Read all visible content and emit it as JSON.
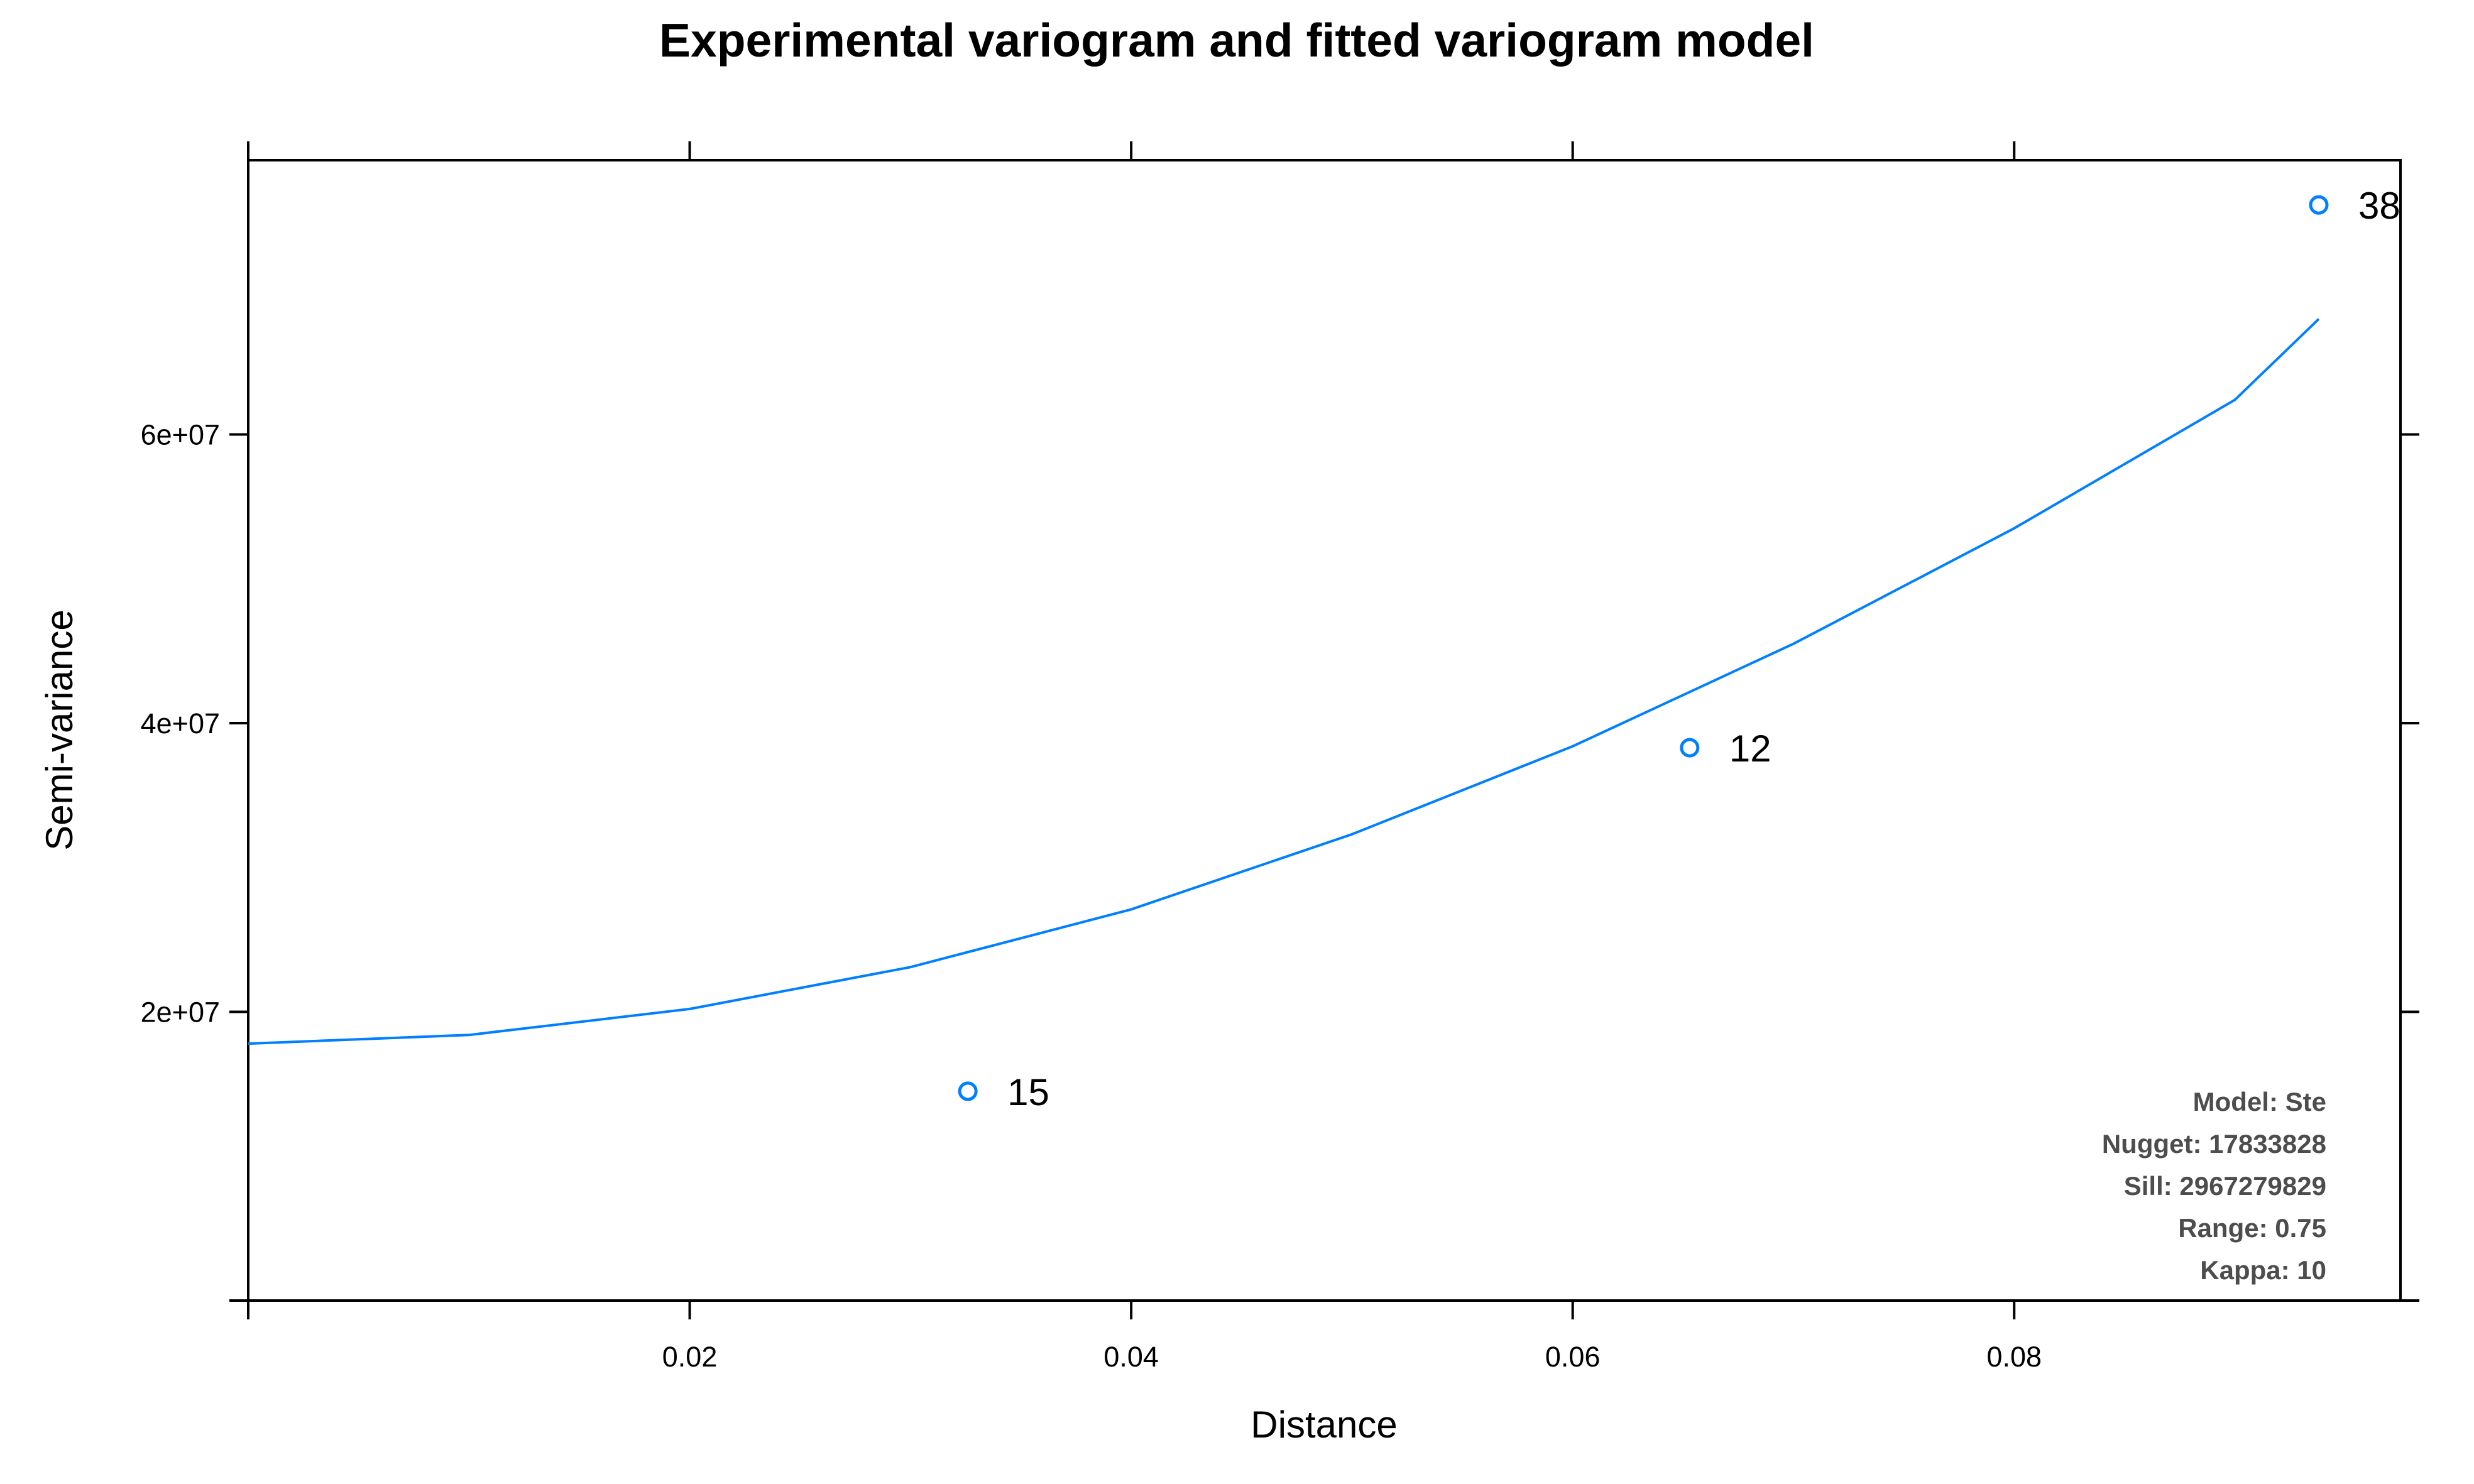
{
  "chart_data": {
    "type": "scatter",
    "title": "Experimental variogram and fitted variogram model",
    "xlabel": "Distance",
    "ylabel": "Semi-variance",
    "xlim": [
      0,
      0.0975
    ],
    "ylim": [
      0,
      79000000
    ],
    "x_ticks": [
      0.02,
      0.04,
      0.06,
      0.08
    ],
    "x_tick_labels": [
      "0.02",
      "0.04",
      "0.06",
      "0.08"
    ],
    "y_ticks": [
      20000000,
      40000000,
      60000000
    ],
    "y_tick_labels": [
      "2e+07",
      "4e+07",
      "6e+07"
    ],
    "grid": false,
    "series": [
      {
        "type": "scatter",
        "x": [
          0.0326,
          0.0653,
          0.0938
        ],
        "y": [
          14500000,
          38300000,
          75900000
        ],
        "point_labels": [
          "15",
          "12",
          "38"
        ]
      },
      {
        "type": "line",
        "x": [
          0,
          0.01,
          0.02,
          0.03,
          0.04,
          0.05,
          0.06,
          0.07,
          0.08,
          0.09,
          0.0938
        ],
        "y": [
          17800000,
          18400000,
          20200000,
          23100000,
          27100000,
          32300000,
          38400000,
          45500000,
          53500000,
          62400000,
          68000000
        ]
      }
    ],
    "color": "#0080ff",
    "info_lines": [
      "Model: Ste",
      "Nugget: 17833828",
      "Sill: 2967279829",
      "Range: 0.75",
      "Kappa: 10"
    ]
  }
}
